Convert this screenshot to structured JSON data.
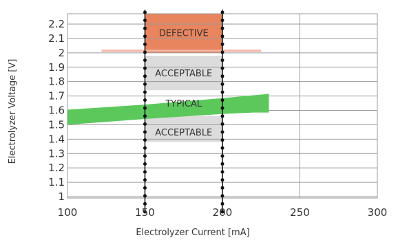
{
  "chart_data": {
    "type": "line",
    "title": "",
    "xlabel": "Electrolyzer Current [mA]",
    "ylabel": "Electrolyzer Voltage [V]",
    "xlim": [
      100,
      300
    ],
    "ylim": [
      1,
      2.2
    ],
    "x_ticks": [
      100,
      150,
      200,
      250,
      300
    ],
    "y_ticks": [
      1,
      1.1,
      1.2,
      1.3,
      1.4,
      1.5,
      1.6,
      1.7,
      1.8,
      1.9,
      2,
      2.1,
      2.2
    ],
    "x_tick_labels": [
      "100",
      "150",
      "200",
      "250",
      "300"
    ],
    "y_tick_labels": [
      "1",
      "1.1",
      "1.2",
      "1.3",
      "1.4",
      "1.5",
      "1.6",
      "1.7",
      "1.8",
      "1.9",
      "2",
      "2.1",
      "2.2"
    ],
    "grid": true,
    "legend": "none",
    "regions": [
      {
        "name": "DEFECTIVE",
        "x": [
          150,
          200
        ],
        "y": [
          2.0,
          2.3
        ],
        "color": "#e8845e"
      },
      {
        "name": "ACCEPTABLE",
        "x": [
          150,
          200
        ],
        "y": [
          1.74,
          1.98
        ],
        "color": "#dcdcdc"
      },
      {
        "name": "ACCEPTABLE",
        "x": [
          150,
          200
        ],
        "y": [
          1.38,
          1.56
        ],
        "color": "#dcdcdc"
      }
    ],
    "region_labels": [
      {
        "text": "DEFECTIVE",
        "x": 175,
        "y": 2.14
      },
      {
        "text": "ACCEPTABLE",
        "x": 175,
        "y": 1.86
      },
      {
        "text": "TYPICAL",
        "x": 175,
        "y": 1.65
      },
      {
        "text": "ACCEPTABLE",
        "x": 175,
        "y": 1.45
      }
    ],
    "series": [
      {
        "type": "band",
        "color": "#5cc85c",
        "x": [
          100,
          150,
          200,
          220,
          230
        ],
        "y_upper": [
          1.605,
          1.64,
          1.685,
          1.705,
          1.715
        ],
        "y_lower": [
          1.5,
          1.54,
          1.575,
          1.585,
          1.585
        ]
      },
      {
        "type": "line",
        "color": "#f2b3a3",
        "x": [
          122,
          225
        ],
        "y": [
          2.015,
          2.015
        ]
      }
    ],
    "boundary_lines": [
      {
        "x": 150,
        "style": "dotted"
      },
      {
        "x": 200,
        "style": "dotted"
      }
    ]
  }
}
